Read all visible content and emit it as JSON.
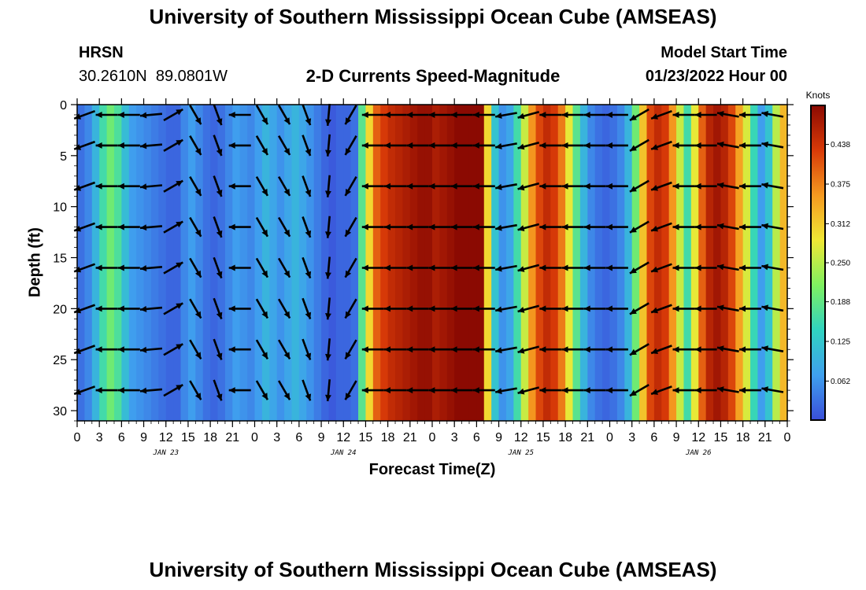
{
  "header": {
    "title": "University of Southern Mississippi Ocean Cube (AMSEAS)",
    "station_name": "HRSN",
    "station_coords": "30.2610N  89.0801W",
    "plot_title": "2-D Currents Speed-Magnitude",
    "model_start_label": "Model Start Time",
    "model_start_value": "01/23/2022 Hour 00"
  },
  "footer_title": "University of Southern Mississippi Ocean Cube (AMSEAS)",
  "colors": {
    "colormap": [
      "#3a4fd9",
      "#3fa0ee",
      "#30d3c0",
      "#7ff060",
      "#f0e835",
      "#f59a20",
      "#d83a08",
      "#8b0a02"
    ],
    "arrow": "#000000",
    "frame": "#000000"
  },
  "chart_data": {
    "type": "heatmap",
    "title": "2-D Currents Speed-Magnitude",
    "xlabel": "Forecast Time(Z)",
    "ylabel": "Depth (ft)",
    "x_range_hours": [
      0,
      96
    ],
    "x_tick_labels": [
      "0",
      "3",
      "6",
      "9",
      "12",
      "15",
      "18",
      "21",
      "0",
      "3",
      "6",
      "9",
      "12",
      "15",
      "18",
      "21",
      "0",
      "3",
      "6",
      "9",
      "12",
      "15",
      "18",
      "21",
      "0",
      "3",
      "6",
      "9",
      "12",
      "15",
      "18",
      "21",
      "0"
    ],
    "day_labels": [
      "JAN 23",
      "JAN 24",
      "JAN 25",
      "JAN 26"
    ],
    "y_range_ft": [
      0,
      31
    ],
    "y_ticks": [
      0,
      5,
      10,
      15,
      20,
      25,
      30
    ],
    "y_tick_labels": [
      "0",
      "5",
      "10",
      "15",
      "20",
      "25",
      "30"
    ],
    "colorbar": {
      "label": "Knots",
      "range": [
        0,
        0.5
      ],
      "ticks": [
        0.062,
        0.125,
        0.188,
        0.25,
        0.312,
        0.375,
        0.438
      ],
      "tick_labels": [
        "0.062",
        "0.125",
        "0.188",
        "0.250",
        "0.312",
        "0.375",
        "0.438"
      ]
    },
    "surface_speed_profile": {
      "hours": [
        0,
        1,
        2,
        3,
        4,
        5,
        6,
        7,
        8,
        9,
        10,
        11,
        12,
        13,
        14,
        15,
        16,
        17,
        18,
        19,
        20,
        21,
        22,
        23,
        24,
        25,
        26,
        27,
        28,
        29,
        30,
        31,
        32,
        33,
        34,
        35,
        36,
        37,
        38,
        39,
        40,
        41,
        42,
        43,
        44,
        45,
        46,
        47,
        48,
        49,
        50,
        51,
        52,
        53,
        54,
        55,
        56,
        57,
        58,
        59,
        60,
        61,
        62,
        63,
        64,
        65,
        66,
        67,
        68,
        69,
        70,
        71,
        72,
        73,
        74,
        75,
        76,
        77,
        78,
        79,
        80,
        81,
        82,
        83,
        84,
        85,
        86,
        87,
        88,
        89,
        90,
        91,
        92,
        93,
        94,
        95,
        96
      ],
      "speed_knots": [
        0.03,
        0.05,
        0.1,
        0.16,
        0.2,
        0.17,
        0.11,
        0.07,
        0.06,
        0.05,
        0.04,
        0.03,
        0.02,
        0.02,
        0.05,
        0.07,
        0.05,
        0.03,
        0.02,
        0.03,
        0.05,
        0.07,
        0.06,
        0.05,
        0.07,
        0.1,
        0.08,
        0.06,
        0.08,
        0.1,
        0.08,
        0.06,
        0.04,
        0.02,
        0.01,
        0.02,
        0.02,
        0.03,
        0.18,
        0.3,
        0.4,
        0.43,
        0.45,
        0.46,
        0.47,
        0.48,
        0.49,
        0.49,
        0.47,
        0.48,
        0.49,
        0.5,
        0.5,
        0.5,
        0.5,
        0.3,
        0.12,
        0.06,
        0.08,
        0.16,
        0.26,
        0.36,
        0.42,
        0.45,
        0.43,
        0.38,
        0.28,
        0.18,
        0.1,
        0.05,
        0.03,
        0.02,
        0.03,
        0.05,
        0.1,
        0.2,
        0.32,
        0.42,
        0.45,
        0.43,
        0.36,
        0.26,
        0.16,
        0.28,
        0.4,
        0.46,
        0.48,
        0.46,
        0.42,
        0.35,
        0.27,
        0.15,
        0.07,
        0.12,
        0.25,
        0.33,
        0.2
      ]
    },
    "vector_depths_ft": [
      1,
      4,
      8,
      12,
      16,
      20,
      24,
      28
    ],
    "vector_hours": [
      1,
      4,
      7,
      10,
      13,
      16,
      19,
      22,
      25,
      28,
      31,
      34,
      37,
      40,
      43,
      46,
      49,
      52,
      55,
      58,
      61,
      64,
      67,
      70,
      73,
      76,
      79,
      82,
      85,
      88,
      91,
      94
    ],
    "vector_directions_deg": [
      200,
      180,
      180,
      185,
      30,
      300,
      290,
      180,
      300,
      300,
      290,
      265,
      240,
      180,
      180,
      180,
      180,
      180,
      180,
      190,
      195,
      180,
      180,
      180,
      180,
      210,
      200,
      180,
      180,
      170,
      180,
      170
    ]
  }
}
